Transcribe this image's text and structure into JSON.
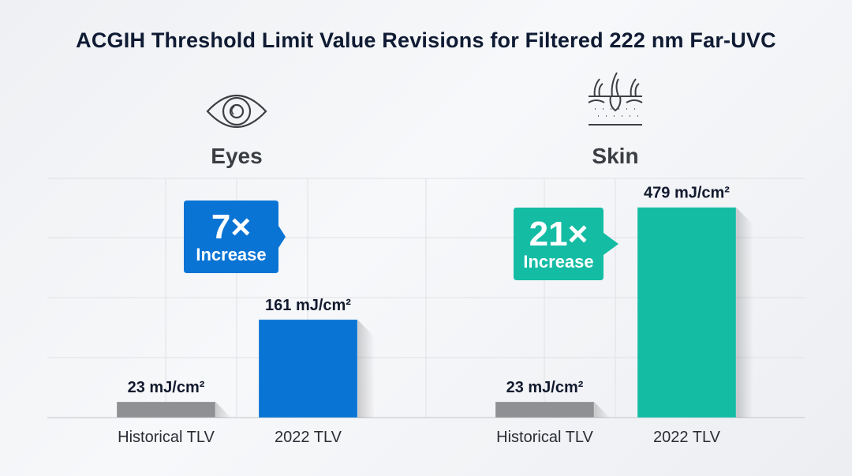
{
  "title": "ACGIH Threshold Limit Value Revisions for Filtered 222 nm Far-UVC",
  "colors": {
    "historical": "#8e9093",
    "eyes": "#0a74d4",
    "skin": "#14bca4",
    "grid": "#dfe1e4",
    "text": "#121a2e"
  },
  "chart_data": [
    {
      "type": "bar",
      "title": "Eyes",
      "icon": "eye-icon",
      "categories": [
        "Historical TLV",
        "2022 TLV"
      ],
      "values": [
        23,
        161
      ],
      "data_labels": [
        "23 mJ/cm²",
        "161 mJ/cm²"
      ],
      "unit": "mJ/cm²",
      "annotation": {
        "multiplier": "7×",
        "text": "Increase"
      },
      "grid": true
    },
    {
      "type": "bar",
      "title": "Skin",
      "icon": "skin-hair-follicle-icon",
      "categories": [
        "Historical TLV",
        "2022 TLV"
      ],
      "values": [
        23,
        479
      ],
      "data_labels": [
        "23 mJ/cm²",
        "479 mJ/cm²"
      ],
      "unit": "mJ/cm²",
      "annotation": {
        "multiplier": "21×",
        "text": "Increase"
      },
      "grid": true
    }
  ]
}
